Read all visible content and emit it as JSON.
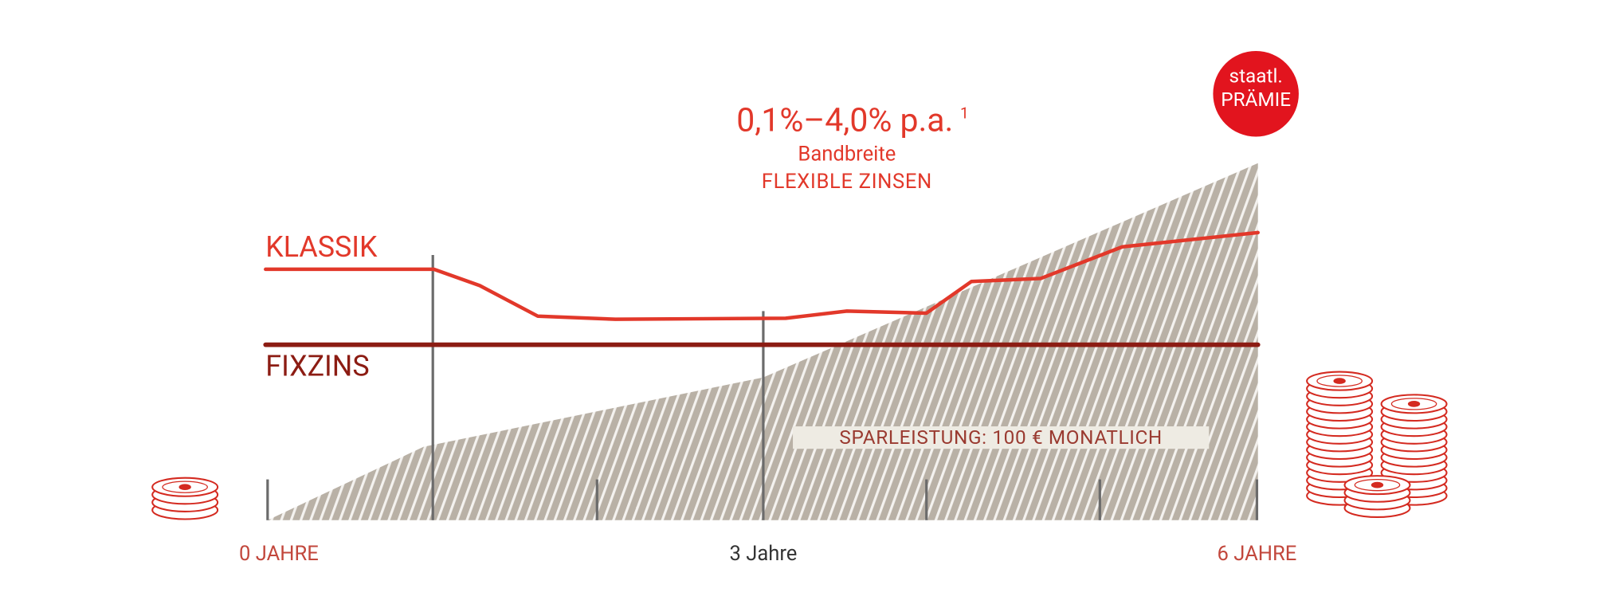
{
  "rate": {
    "text": "0,1%–4,0% p.a.",
    "footnote": "1",
    "caption": [
      "Bandbreite",
      "FLEXIBLE ZINSEN"
    ]
  },
  "badge": [
    "staatl.",
    "PRÄMIE"
  ],
  "series_labels": [
    "KLASSIK",
    "FIXZINS"
  ],
  "savings_label": "SPARLEISTUNG: 100 € MONATLICH",
  "axis_labels": [
    "0 JAHRE",
    "3 Jahre",
    "6 JAHRE"
  ]
}
